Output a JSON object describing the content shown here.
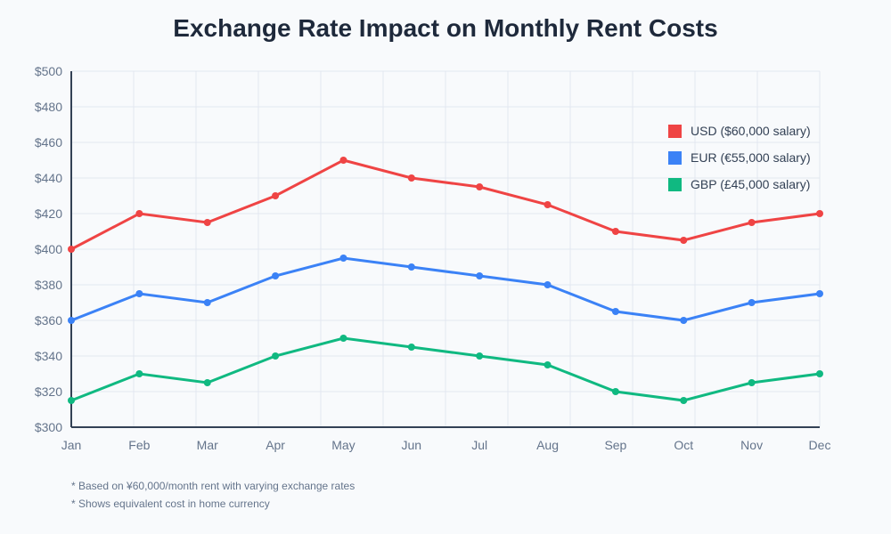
{
  "chart_data": {
    "type": "line",
    "title": "Exchange Rate Impact on Monthly Rent Costs",
    "xlabel": "",
    "ylabel": "",
    "categories": [
      "Jan",
      "Feb",
      "Mar",
      "Apr",
      "May",
      "Jun",
      "Jul",
      "Aug",
      "Sep",
      "Oct",
      "Nov",
      "Dec"
    ],
    "ylim": [
      300,
      500
    ],
    "yticks": [
      "$300",
      "$320",
      "$340",
      "$360",
      "$380",
      "$400",
      "$420",
      "$440",
      "$460",
      "$480",
      "$500"
    ],
    "grid": true,
    "legend_position": "top-right",
    "series": [
      {
        "name": "USD ($60,000 salary)",
        "color": "#ef4444",
        "values": [
          400,
          420,
          415,
          430,
          450,
          440,
          435,
          425,
          410,
          405,
          415,
          420
        ]
      },
      {
        "name": "EUR (€55,000 salary)",
        "color": "#3b82f6",
        "values": [
          360,
          375,
          370,
          385,
          395,
          390,
          385,
          380,
          365,
          360,
          370,
          375
        ]
      },
      {
        "name": "GBP (£45,000 salary)",
        "color": "#10b981",
        "values": [
          315,
          330,
          325,
          340,
          350,
          345,
          340,
          335,
          320,
          315,
          325,
          330
        ]
      }
    ],
    "annotations": [
      "* Based on ¥60,000/month rent with varying exchange rates",
      "* Shows equivalent cost in home currency"
    ]
  }
}
